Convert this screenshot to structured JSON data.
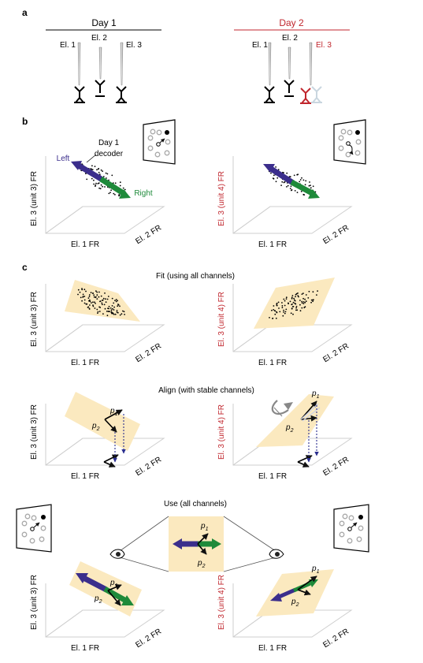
{
  "panels": {
    "a": "a",
    "b": "b",
    "c": "c"
  },
  "panel_a": {
    "day1": "Day 1",
    "day2": "Day 2",
    "day1_electrodes": [
      "El. 1",
      "El. 2",
      "El. 3"
    ],
    "day2_electrodes": [
      "El. 1",
      "El. 2",
      "El. 3"
    ]
  },
  "panel_b": {
    "left_label": "Left",
    "right_label": "Right",
    "decoder_line1": "Day 1",
    "decoder_line2": "decoder"
  },
  "axes": {
    "x": "El. 1 FR",
    "z": "El. 2 FR",
    "y_day1": "El. 3 (unit 3) FR",
    "y_day2": "El. 3 (unit 4) FR"
  },
  "steps": {
    "fit": "Fit (using all channels)",
    "align": "Align (with stable channels)",
    "use": "Use (all channels)"
  },
  "vectors": {
    "p": "p",
    "sub1": "1",
    "sub2": "2"
  },
  "colors": {
    "day2": "#c0262d",
    "left_arrow": "#3b2e8c",
    "right_arrow": "#1e8a3a",
    "plane": "#fbe9bf",
    "dashed": "#2b2f8f"
  }
}
